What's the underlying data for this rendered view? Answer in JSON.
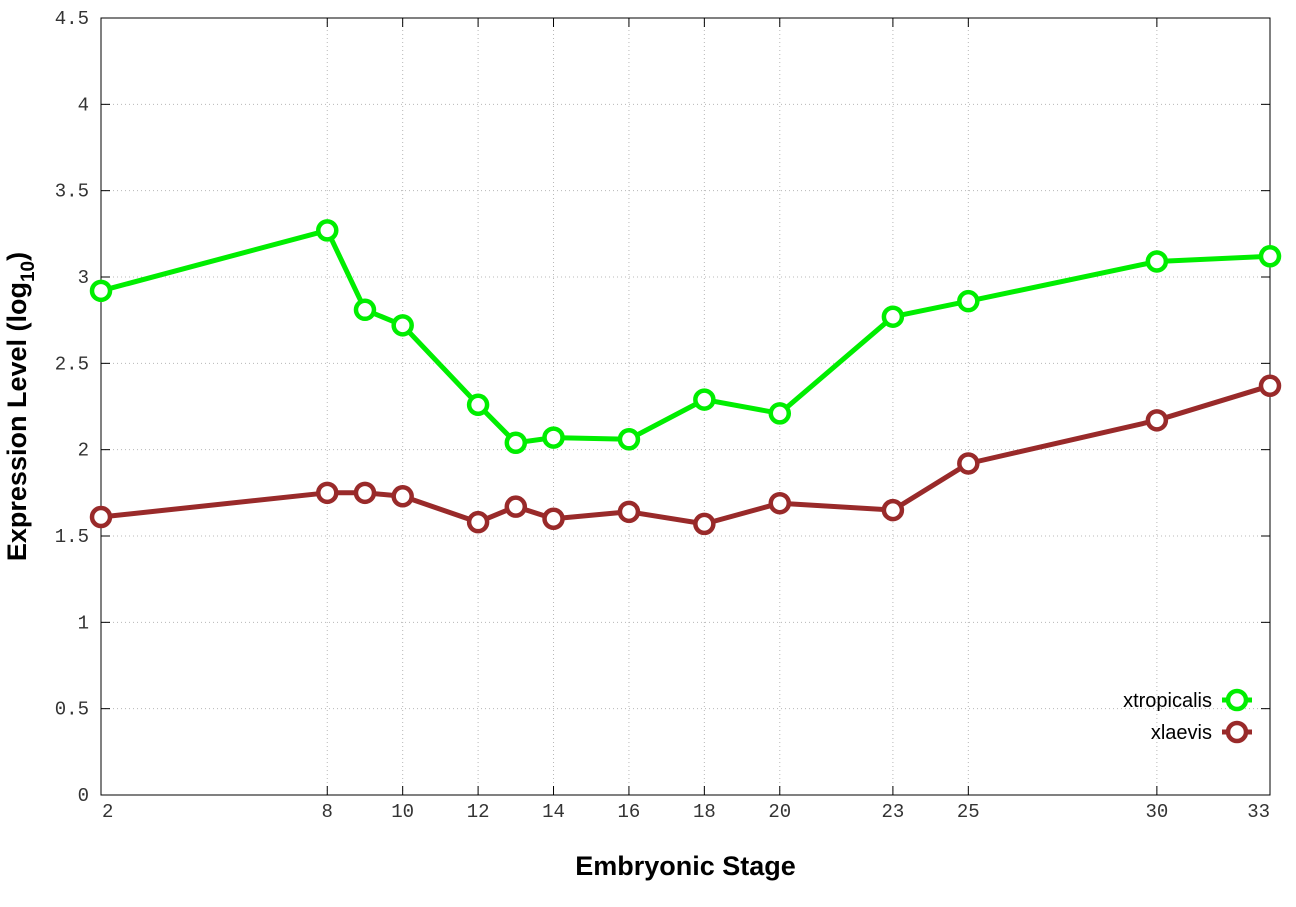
{
  "chart_data": {
    "type": "line",
    "xlabel": "Embryonic Stage",
    "ylabel": "Expression Level (log",
    "ylabel_sub": "10",
    "ylabel_close": ")",
    "x_ticks": [
      2,
      8,
      10,
      12,
      14,
      16,
      18,
      20,
      23,
      25,
      30,
      33
    ],
    "y_ticks": [
      "0",
      "0.5",
      "1",
      "1.5",
      "2",
      "2.5",
      "3",
      "3.5",
      "4",
      "4.5"
    ],
    "xlim": [
      2,
      33
    ],
    "ylim": [
      0,
      4.5
    ],
    "grid": true,
    "legend_position": "bottom-right",
    "series": [
      {
        "name": "xtropicalis",
        "color": "#00ee00",
        "marker": "open-circle",
        "x": [
          2,
          8,
          9,
          10,
          12,
          13,
          14,
          16,
          18,
          20,
          23,
          25,
          30,
          33
        ],
        "values": [
          2.92,
          3.27,
          2.81,
          2.72,
          2.26,
          2.04,
          2.07,
          2.06,
          2.29,
          2.21,
          2.77,
          2.86,
          3.09,
          3.12
        ]
      },
      {
        "name": "xlaevis",
        "color": "#992a2a",
        "marker": "open-circle",
        "x": [
          2,
          8,
          9,
          10,
          12,
          13,
          14,
          16,
          18,
          20,
          23,
          25,
          30,
          33
        ],
        "values": [
          1.61,
          1.75,
          1.75,
          1.73,
          1.58,
          1.67,
          1.6,
          1.64,
          1.57,
          1.69,
          1.65,
          1.92,
          2.17,
          2.37
        ]
      }
    ]
  }
}
